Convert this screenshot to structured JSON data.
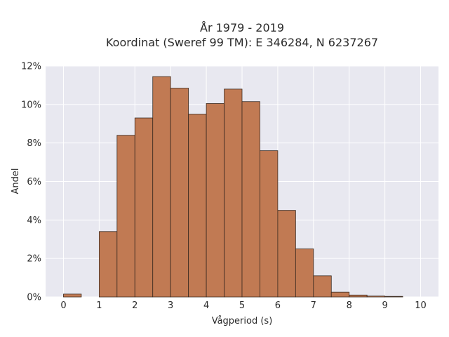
{
  "chart_data": {
    "type": "bar",
    "title_lines": [
      "År 1979 - 2019",
      "Koordinat (Sweref 99 TM): E 346284, N 6237267"
    ],
    "xlabel": "Vågperiod (s)",
    "ylabel": "Andel",
    "xlim": [
      -0.5,
      10.5
    ],
    "ylim": [
      0,
      12
    ],
    "x_ticks": [
      "0",
      "1",
      "2",
      "3",
      "4",
      "5",
      "6",
      "7",
      "8",
      "9",
      "10"
    ],
    "y_ticks": [
      "0%",
      "2%",
      "4%",
      "6%",
      "8%",
      "10%",
      "12%"
    ],
    "bin_width": 0.5,
    "bins": [
      {
        "x0": 0.0,
        "value": 0.15
      },
      {
        "x0": 0.5,
        "value": 0.0
      },
      {
        "x0": 1.0,
        "value": 3.4
      },
      {
        "x0": 1.5,
        "value": 8.4
      },
      {
        "x0": 2.0,
        "value": 9.3
      },
      {
        "x0": 2.5,
        "value": 11.45
      },
      {
        "x0": 3.0,
        "value": 10.85
      },
      {
        "x0": 3.5,
        "value": 9.5
      },
      {
        "x0": 4.0,
        "value": 10.05
      },
      {
        "x0": 4.5,
        "value": 10.8
      },
      {
        "x0": 5.0,
        "value": 10.15
      },
      {
        "x0": 5.5,
        "value": 7.6
      },
      {
        "x0": 6.0,
        "value": 4.5
      },
      {
        "x0": 6.5,
        "value": 2.5
      },
      {
        "x0": 7.0,
        "value": 1.1
      },
      {
        "x0": 7.5,
        "value": 0.25
      },
      {
        "x0": 8.0,
        "value": 0.1
      },
      {
        "x0": 8.5,
        "value": 0.05
      },
      {
        "x0": 9.0,
        "value": 0.03
      }
    ],
    "colors": {
      "bar_fill": "#c17a53",
      "bar_stroke": "#3a2a20",
      "plot_bg": "#e8e8f0",
      "grid": "#ffffff"
    },
    "grid": true,
    "legend": "none"
  }
}
